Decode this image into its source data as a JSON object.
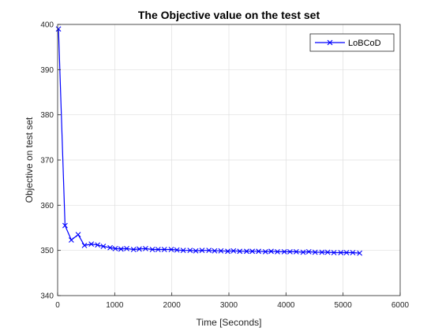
{
  "chart_data": {
    "type": "line",
    "title": "The Objective value on the test set",
    "xlabel": "Time [Seconds]",
    "ylabel": "Objective on test set",
    "xlim": [
      0,
      6000
    ],
    "ylim": [
      340,
      400
    ],
    "xticks": [
      0,
      1000,
      2000,
      3000,
      4000,
      5000,
      6000
    ],
    "yticks": [
      340,
      350,
      360,
      370,
      380,
      390,
      400
    ],
    "grid": true,
    "legend_position": "top-right",
    "series": [
      {
        "name": "LoBCoD",
        "color": "#0000ff",
        "marker": "x",
        "x": [
          15,
          130,
          240,
          360,
          470,
          590,
          700,
          800,
          920,
          1010,
          1110,
          1210,
          1330,
          1430,
          1540,
          1660,
          1760,
          1870,
          1990,
          2090,
          2200,
          2320,
          2420,
          2530,
          2650,
          2750,
          2860,
          2980,
          3080,
          3190,
          3310,
          3410,
          3520,
          3640,
          3740,
          3850,
          3970,
          4070,
          4180,
          4300,
          4400,
          4510,
          4630,
          4730,
          4840,
          4960,
          5060,
          5170,
          5290
        ],
        "y": [
          399,
          355.5,
          352.3,
          353.5,
          351.1,
          351.4,
          351.2,
          350.9,
          350.6,
          350.4,
          350.3,
          350.4,
          350.2,
          350.3,
          350.4,
          350.2,
          350.2,
          350.2,
          350.2,
          350.1,
          350.0,
          350.0,
          349.9,
          350.0,
          350.0,
          349.9,
          349.9,
          349.8,
          349.9,
          349.8,
          349.8,
          349.8,
          349.8,
          349.7,
          349.8,
          349.7,
          349.7,
          349.7,
          349.7,
          349.6,
          349.7,
          349.6,
          349.6,
          349.6,
          349.5,
          349.5,
          349.5,
          349.5,
          349.4
        ]
      }
    ]
  },
  "colors": {
    "axis": "#262626",
    "grid": "#dfdfdf",
    "series": "#0000ff"
  }
}
